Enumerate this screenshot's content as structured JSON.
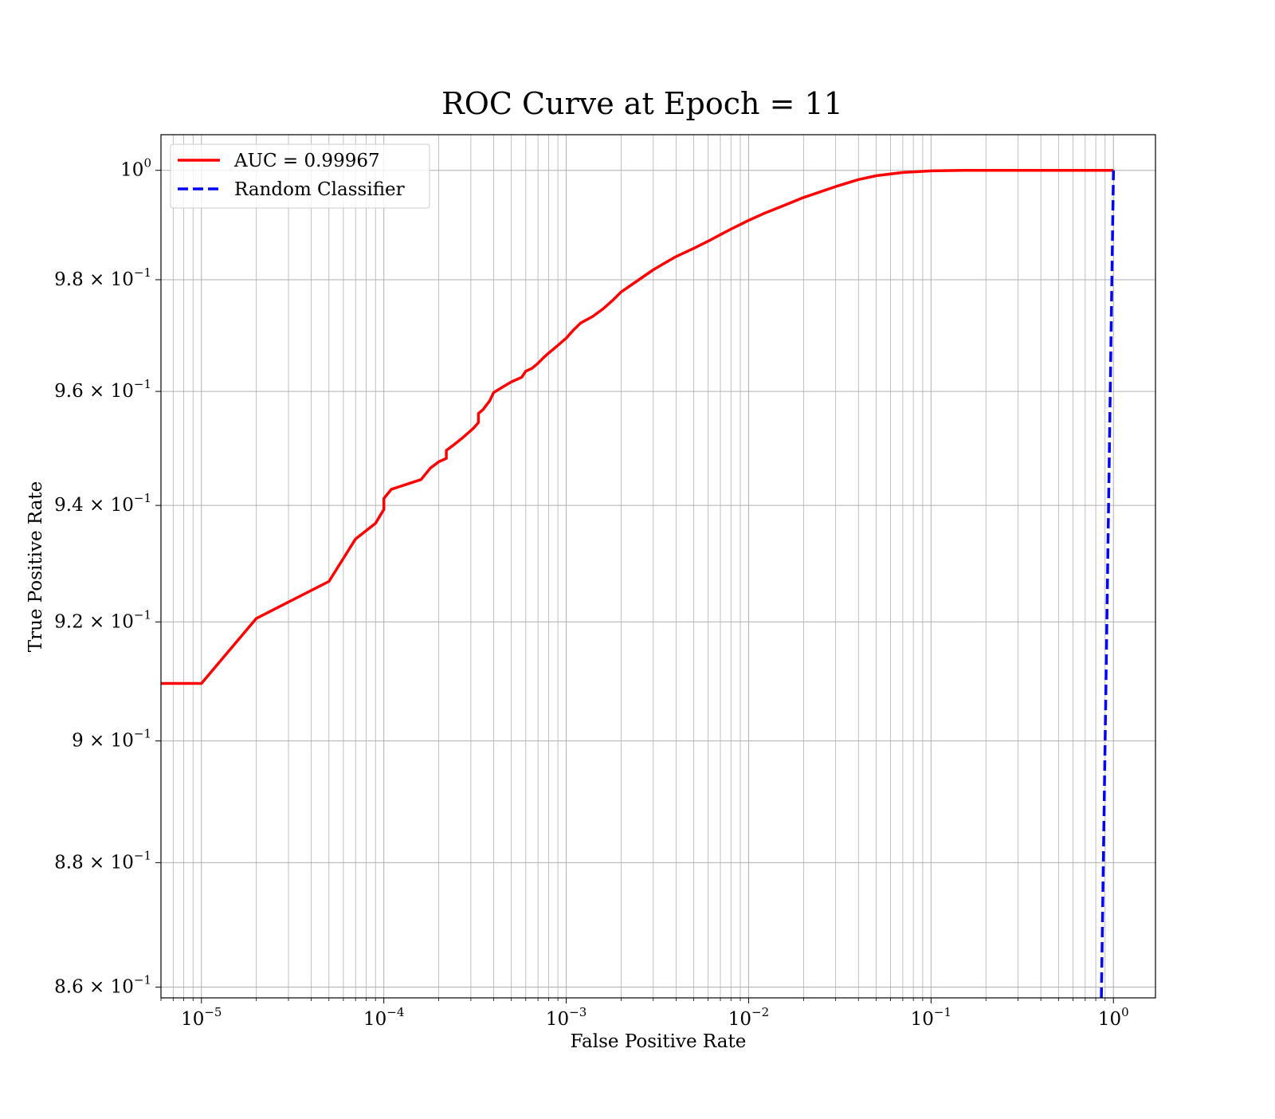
{
  "chart_data": {
    "type": "line",
    "title": "ROC Curve at Epoch = 11",
    "xlabel": "False Positive Rate",
    "ylabel": "True Positive Rate",
    "xscale": "log",
    "yscale": "log",
    "xlim": [
      6e-06,
      1.7
    ],
    "ylim": [
      0.8583,
      1.0066
    ],
    "grid": "on (major and minor)",
    "legend_position": "top-left",
    "x_ticks": [
      {
        "value": 1e-05,
        "base": "10",
        "exp": "−5"
      },
      {
        "value": 0.0001,
        "base": "10",
        "exp": "−4"
      },
      {
        "value": 0.001,
        "base": "10",
        "exp": "−3"
      },
      {
        "value": 0.01,
        "base": "10",
        "exp": "−2"
      },
      {
        "value": 0.1,
        "base": "10",
        "exp": "−1"
      },
      {
        "value": 1,
        "base": "10",
        "exp": "0"
      }
    ],
    "y_ticks": [
      {
        "value": 1.0,
        "base": "10",
        "exp": "0"
      },
      {
        "value": 0.98,
        "base": "9.8 × 10",
        "exp": "−1"
      },
      {
        "value": 0.96,
        "base": "9.6 × 10",
        "exp": "−1"
      },
      {
        "value": 0.94,
        "base": "9.4 × 10",
        "exp": "−1"
      },
      {
        "value": 0.92,
        "base": "9.2 × 10",
        "exp": "−1"
      },
      {
        "value": 0.9,
        "base": "9 × 10",
        "exp": "−1"
      },
      {
        "value": 0.88,
        "base": "8.8 × 10",
        "exp": "−1"
      },
      {
        "value": 0.86,
        "base": "8.6 × 10",
        "exp": "−1"
      }
    ],
    "series": [
      {
        "name": "AUC = 0.99967",
        "color": "#ff0000",
        "style": "solid",
        "x": [
          6e-06,
          1e-05,
          2e-05,
          5e-05,
          7e-05,
          9e-05,
          0.0001,
          0.0001,
          0.00011,
          0.00016,
          0.00018,
          0.0002,
          0.00022,
          0.00022,
          0.00024,
          0.00027,
          0.00031,
          0.00033,
          0.00033,
          0.00035,
          0.00038,
          0.0004,
          0.00045,
          0.0005,
          0.00057,
          0.0006,
          0.00065,
          0.0007,
          0.00075,
          0.0008,
          0.0009,
          0.001,
          0.0011,
          0.0012,
          0.0014,
          0.0016,
          0.0018,
          0.002,
          0.0025,
          0.003,
          0.0035,
          0.004,
          0.005,
          0.006,
          0.007,
          0.008,
          0.01,
          0.012,
          0.015,
          0.02,
          0.03,
          0.04,
          0.05,
          0.07,
          0.1,
          0.15,
          0.3,
          0.5,
          1.0
        ],
        "y": [
          0.9096,
          0.9096,
          0.9206,
          0.9269,
          0.9342,
          0.9369,
          0.9393,
          0.9412,
          0.9428,
          0.9445,
          0.9465,
          0.9476,
          0.9482,
          0.9496,
          0.9505,
          0.9518,
          0.9535,
          0.9545,
          0.9561,
          0.9568,
          0.9583,
          0.9598,
          0.9608,
          0.9617,
          0.9625,
          0.9636,
          0.9641,
          0.965,
          0.966,
          0.9668,
          0.9682,
          0.9695,
          0.971,
          0.9722,
          0.9734,
          0.9748,
          0.9763,
          0.9778,
          0.98,
          0.9818,
          0.9831,
          0.9842,
          0.9857,
          0.987,
          0.9882,
          0.9892,
          0.9908,
          0.992,
          0.9933,
          0.995,
          0.997,
          0.9983,
          0.999,
          0.9996,
          0.9999,
          1.0,
          1.0,
          1.0,
          1.0
        ]
      },
      {
        "name": "Random Classifier",
        "color": "#0000ff",
        "style": "dashed",
        "x": [
          0.8583,
          1.0
        ],
        "y": [
          0.8583,
          1.0
        ]
      }
    ]
  }
}
